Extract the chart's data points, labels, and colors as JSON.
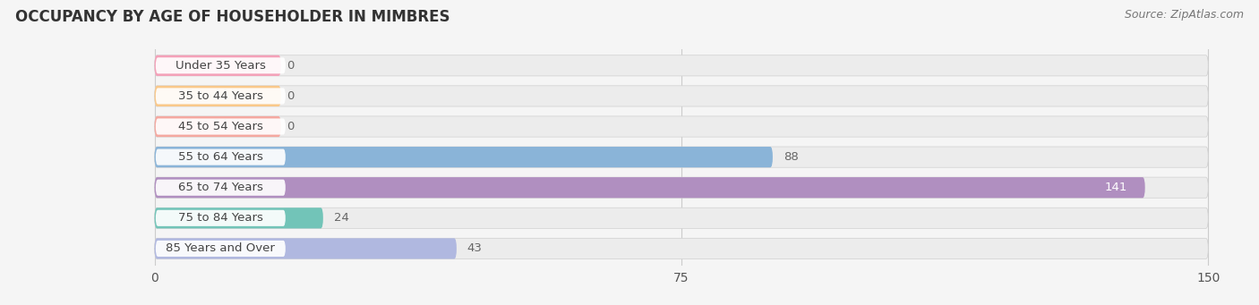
{
  "title": "OCCUPANCY BY AGE OF HOUSEHOLDER IN MIMBRES",
  "source": "Source: ZipAtlas.com",
  "categories": [
    "Under 35 Years",
    "35 to 44 Years",
    "45 to 54 Years",
    "55 to 64 Years",
    "65 to 74 Years",
    "75 to 84 Years",
    "85 Years and Over"
  ],
  "values": [
    0,
    0,
    0,
    88,
    141,
    24,
    43
  ],
  "bar_colors": [
    "#f4a0b8",
    "#f9c88a",
    "#f4a8a0",
    "#8ab4d8",
    "#b08fc0",
    "#72c4b8",
    "#b0b8e0"
  ],
  "xlim_data": [
    0,
    150
  ],
  "xticks": [
    0,
    75,
    150
  ],
  "bar_height": 0.68,
  "background_color": "#f5f5f5",
  "label_color_inside": "#ffffff",
  "label_color_outside": "#666666",
  "title_fontsize": 12,
  "tick_fontsize": 10,
  "source_fontsize": 9,
  "cat_fontsize": 9.5,
  "value_fontsize": 9.5
}
